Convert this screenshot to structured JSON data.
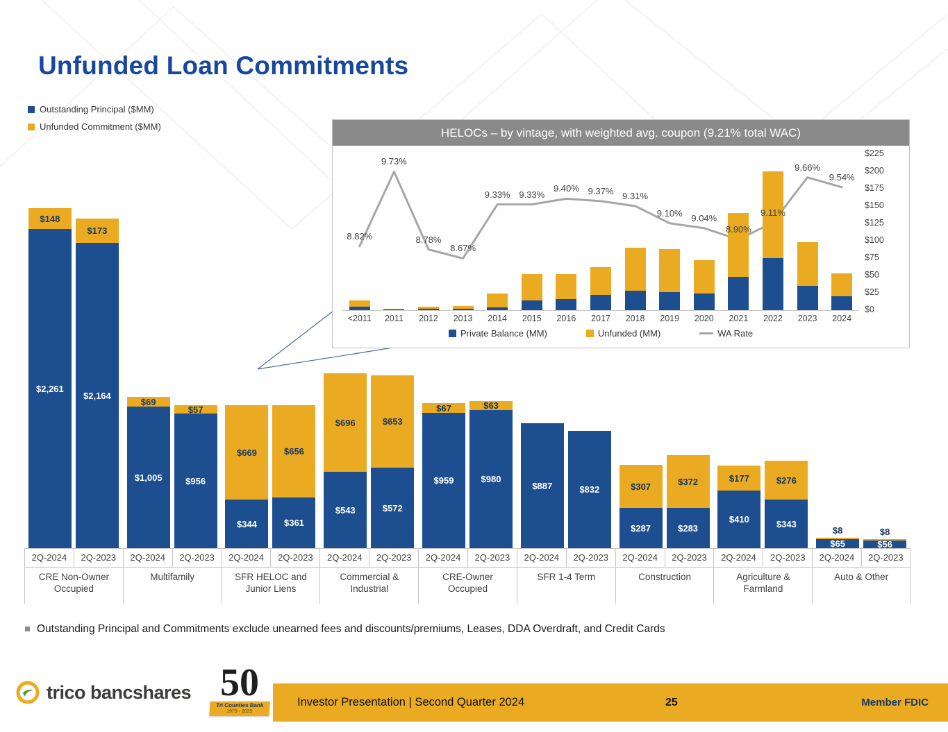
{
  "slide": {
    "title": "Unfunded Loan Commitments",
    "legend": {
      "principal": {
        "label": "Outstanding Principal ($MM)",
        "color": "#1d4e8f"
      },
      "unfunded": {
        "label": "Unfunded Commitment ($MM)",
        "color": "#eaaa21"
      }
    },
    "footnote": "Outstanding Principal and Commitments exclude unearned fees and discounts/premiums, Leases, DDA Overdraft, and Credit Cards",
    "footer": {
      "brand": "trico bancshares",
      "anniversary_number": "50",
      "anniversary_bank": "Tri Counties Bank",
      "anniversary_years": "1975 - 2025",
      "bar_text": "Investor Presentation  |  Second Quarter 2024",
      "page_number": "25",
      "member_fdic": "Member FDIC"
    }
  },
  "colors": {
    "principal_blue": "#1d4e8f",
    "unfunded_gold": "#eaaa21",
    "title_blue": "#17479e",
    "wa_rate_gray": "#a6a6a6",
    "inset_header_gray": "#8a8a8a",
    "footer_gold": "#eaaa21"
  },
  "chart_data": [
    {
      "type": "bar",
      "title": "Unfunded Loan Commitments by loan category ($MM)",
      "stacked": true,
      "series_labels": [
        "Outstanding Principal ($MM)",
        "Unfunded Commitment ($MM)"
      ],
      "ylim": [
        0,
        2409
      ],
      "groups": [
        {
          "category": "CRE Non-Owner Occupied",
          "bars": [
            {
              "period": "2Q-2024",
              "principal": 2261,
              "unfunded": 148
            },
            {
              "period": "2Q-2023",
              "principal": 2164,
              "unfunded": 173
            }
          ]
        },
        {
          "category": "Multifamily",
          "bars": [
            {
              "period": "2Q-2024",
              "principal": 1005,
              "unfunded": 69
            },
            {
              "period": "2Q-2023",
              "principal": 956,
              "unfunded": 57
            }
          ]
        },
        {
          "category": "SFR HELOC and Junior Liens",
          "bars": [
            {
              "period": "2Q-2024",
              "principal": 344,
              "unfunded": 669
            },
            {
              "period": "2Q-2023",
              "principal": 361,
              "unfunded": 656
            }
          ]
        },
        {
          "category": "Commercial & Industrial",
          "bars": [
            {
              "period": "2Q-2024",
              "principal": 543,
              "unfunded": 696
            },
            {
              "period": "2Q-2023",
              "principal": 572,
              "unfunded": 653
            }
          ]
        },
        {
          "category": "CRE-Owner Occupied",
          "bars": [
            {
              "period": "2Q-2024",
              "principal": 959,
              "unfunded": 67
            },
            {
              "period": "2Q-2023",
              "principal": 980,
              "unfunded": 63
            }
          ]
        },
        {
          "category": "SFR 1-4 Term",
          "bars": [
            {
              "period": "2Q-2024",
              "principal": 887,
              "unfunded": 0
            },
            {
              "period": "2Q-2023",
              "principal": 832,
              "unfunded": 0
            }
          ]
        },
        {
          "category": "Construction",
          "bars": [
            {
              "period": "2Q-2024",
              "principal": 287,
              "unfunded": 307
            },
            {
              "period": "2Q-2023",
              "principal": 283,
              "unfunded": 372
            }
          ]
        },
        {
          "category": "Agriculture & Farmland",
          "bars": [
            {
              "period": "2Q-2024",
              "principal": 410,
              "unfunded": 177
            },
            {
              "period": "2Q-2023",
              "principal": 343,
              "unfunded": 276
            }
          ]
        },
        {
          "category": "Auto & Other",
          "bars": [
            {
              "period": "2Q-2024",
              "principal": 65,
              "unfunded": 8
            },
            {
              "period": "2Q-2023",
              "principal": 56,
              "unfunded": 8
            }
          ]
        }
      ]
    },
    {
      "type": "bar+line",
      "title": "HELOCs – by vintage, with weighted avg. coupon (9.21% total WAC)",
      "categories": [
        "<2011",
        "2011",
        "2012",
        "2013",
        "2014",
        "2015",
        "2016",
        "2017",
        "2018",
        "2019",
        "2020",
        "2021",
        "2022",
        "2023",
        "2024"
      ],
      "series": [
        {
          "name": "Private Balance (MM)",
          "type": "bar",
          "values": [
            5,
            1,
            2,
            2,
            4,
            14,
            16,
            22,
            28,
            26,
            24,
            48,
            75,
            35,
            20
          ]
        },
        {
          "name": "Unfunded (MM)",
          "type": "bar",
          "values": [
            9,
            1,
            3,
            4,
            20,
            38,
            36,
            40,
            62,
            62,
            48,
            92,
            125,
            63,
            33
          ]
        },
        {
          "name": "WA Rate",
          "type": "line",
          "values": [
            8.82,
            9.73,
            8.78,
            8.67,
            9.33,
            9.33,
            9.4,
            9.37,
            9.31,
            9.1,
            9.04,
            8.9,
            9.11,
            9.66,
            9.54
          ],
          "labels": [
            "8.82%",
            "9.73%",
            "8.78%",
            "8.67%",
            "9.33%",
            "9.33%",
            "9.40%",
            "9.37%",
            "9.31%",
            "9.10%",
            "9.04%",
            "8.90%",
            "9.11%",
            "9.66%",
            "9.54%"
          ]
        }
      ],
      "y_axis": {
        "side": "right",
        "max": 225,
        "step": 25,
        "ticks": [
          "$225",
          "$200",
          "$175",
          "$150",
          "$125",
          "$100",
          "$75",
          "$50",
          "$25",
          "$0"
        ]
      },
      "legend": [
        "Private Balance (MM)",
        "Unfunded (MM)",
        "WA Rate"
      ]
    }
  ]
}
